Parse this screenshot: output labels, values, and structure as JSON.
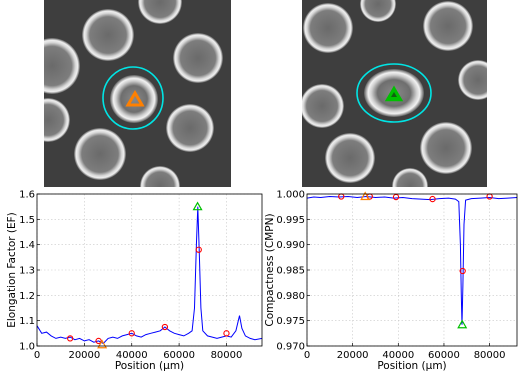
{
  "colors": {
    "cyan_outline": "#00e5e5",
    "orange_marker": "#ff8000",
    "green_marker": "#00c000",
    "trace": "#0000ff",
    "red_marker": "#ff0000"
  },
  "images": [
    {
      "name": "left-micrograph",
      "marker": "orange-triangle"
    },
    {
      "name": "right-micrograph",
      "marker": "green-triangle"
    }
  ],
  "chart_data": [
    {
      "type": "line",
      "xlabel": "Position (μm)",
      "ylabel": "Elongation Factor (EF)",
      "xlim": [
        0,
        95000
      ],
      "ylim": [
        1.0,
        1.6
      ],
      "xticks": [
        0,
        20000,
        40000,
        60000,
        80000
      ],
      "xtick_labels": [
        "0",
        "20000",
        "40000",
        "60000",
        "80000"
      ],
      "yticks": [
        1.0,
        1.1,
        1.2,
        1.3,
        1.4,
        1.5,
        1.6
      ],
      "ytick_labels": [
        "1.0",
        "1.1",
        "1.2",
        "1.3",
        "1.4",
        "1.5",
        "1.6"
      ],
      "grid": true,
      "series": [
        {
          "values": [
            [
              0,
              1.08
            ],
            [
              2000,
              1.05
            ],
            [
              4000,
              1.055
            ],
            [
              6000,
              1.04
            ],
            [
              8000,
              1.03
            ],
            [
              10000,
              1.035
            ],
            [
              12000,
              1.03
            ],
            [
              14000,
              1.035
            ],
            [
              16000,
              1.025
            ],
            [
              18000,
              1.03
            ],
            [
              20000,
              1.02
            ],
            [
              22000,
              1.025
            ],
            [
              24000,
              1.015
            ],
            [
              26000,
              1.02
            ],
            [
              28000,
              1.01
            ],
            [
              30000,
              1.03
            ],
            [
              32000,
              1.035
            ],
            [
              34000,
              1.03
            ],
            [
              36000,
              1.04
            ],
            [
              38000,
              1.045
            ],
            [
              40000,
              1.05
            ],
            [
              42000,
              1.04
            ],
            [
              44000,
              1.035
            ],
            [
              46000,
              1.045
            ],
            [
              48000,
              1.05
            ],
            [
              50000,
              1.055
            ],
            [
              52000,
              1.06
            ],
            [
              54000,
              1.075
            ],
            [
              56000,
              1.06
            ],
            [
              58000,
              1.05
            ],
            [
              60000,
              1.045
            ],
            [
              62000,
              1.04
            ],
            [
              64000,
              1.05
            ],
            [
              65500,
              1.06
            ],
            [
              66500,
              1.15
            ],
            [
              67300,
              1.4
            ],
            [
              67900,
              1.55
            ],
            [
              68500,
              1.38
            ],
            [
              69200,
              1.15
            ],
            [
              70000,
              1.06
            ],
            [
              72000,
              1.04
            ],
            [
              74000,
              1.035
            ],
            [
              76000,
              1.03
            ],
            [
              78000,
              1.035
            ],
            [
              80000,
              1.04
            ],
            [
              82000,
              1.035
            ],
            [
              84000,
              1.06
            ],
            [
              85500,
              1.12
            ],
            [
              86500,
              1.07
            ],
            [
              88000,
              1.04
            ],
            [
              90000,
              1.03
            ],
            [
              92000,
              1.025
            ],
            [
              95000,
              1.03
            ]
          ]
        }
      ],
      "markers": {
        "red_circles": [
          [
            14000,
            1.03
          ],
          [
            26000,
            1.02
          ],
          [
            40000,
            1.05
          ],
          [
            54000,
            1.075
          ],
          [
            68300,
            1.38
          ],
          [
            80000,
            1.05
          ]
        ],
        "orange_triangle": [
          27500,
          1.005
        ],
        "green_triangle": [
          67800,
          1.55
        ]
      }
    },
    {
      "type": "line",
      "xlabel": "Position (μm)",
      "ylabel": "Compactness (CMPN)",
      "xlim": [
        0,
        92000
      ],
      "ylim": [
        0.97,
        1.0
      ],
      "xticks": [
        0,
        20000,
        40000,
        60000,
        80000
      ],
      "xtick_labels": [
        "0",
        "20000",
        "40000",
        "60000",
        "80000"
      ],
      "yticks": [
        0.97,
        0.975,
        0.98,
        0.985,
        0.99,
        0.995,
        1.0
      ],
      "ytick_labels": [
        "0.970",
        "0.975",
        "0.980",
        "0.985",
        "0.990",
        "0.995",
        "1.000"
      ],
      "grid": true,
      "series": [
        {
          "values": [
            [
              0,
              0.9992
            ],
            [
              3000,
              0.9994
            ],
            [
              6000,
              0.9993
            ],
            [
              10000,
              0.9995
            ],
            [
              14000,
              0.9994
            ],
            [
              18000,
              0.9995
            ],
            [
              22000,
              0.9993
            ],
            [
              26000,
              0.9995
            ],
            [
              30000,
              0.9993
            ],
            [
              34000,
              0.9994
            ],
            [
              38000,
              0.9992
            ],
            [
              42000,
              0.9993
            ],
            [
              46000,
              0.9991
            ],
            [
              50000,
              0.999
            ],
            [
              54000,
              0.9989
            ],
            [
              58000,
              0.9991
            ],
            [
              62000,
              0.9992
            ],
            [
              65000,
              0.999
            ],
            [
              66500,
              0.9985
            ],
            [
              67200,
              0.99
            ],
            [
              67600,
              0.98
            ],
            [
              67900,
              0.9742
            ],
            [
              68300,
              0.982
            ],
            [
              68800,
              0.994
            ],
            [
              69500,
              0.9988
            ],
            [
              72000,
              0.9991
            ],
            [
              76000,
              0.9992
            ],
            [
              80000,
              0.9993
            ],
            [
              84000,
              0.9991
            ],
            [
              88000,
              0.9992
            ],
            [
              92000,
              0.9993
            ]
          ]
        }
      ],
      "markers": {
        "red_circles": [
          [
            15000,
            0.9995
          ],
          [
            27500,
            0.9995
          ],
          [
            39000,
            0.9994
          ],
          [
            55000,
            0.999
          ],
          [
            68200,
            0.9848
          ],
          [
            80000,
            0.9995
          ]
        ],
        "orange_triangle": [
          25500,
          0.9995
        ],
        "green_triangle": [
          68000,
          0.9742
        ]
      }
    }
  ]
}
